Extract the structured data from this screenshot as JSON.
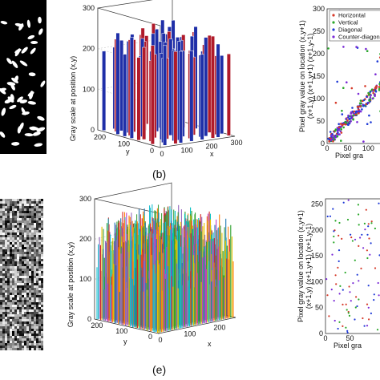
{
  "captions": {
    "top": "(b)",
    "bottom": "(e)"
  },
  "colors": {
    "bar_red": "#b01a2a",
    "bar_blue": "#1f2fa8",
    "bar_white": "#ffffff",
    "horizontal": "#d63a2a",
    "vertical": "#2aa82a",
    "diagonal": "#1f3ad6",
    "counter_diagonal": "#7a2ad6"
  },
  "chart_data": [
    {
      "type": "image",
      "panel": "binary-image",
      "note_text": ""
    },
    {
      "type": "bar3d",
      "panel": "3d-histogram-original",
      "zlabel": "Gray scale at position (x,y)",
      "xlabel": "x",
      "ylabel": "y",
      "zticks": [
        "0",
        "100",
        "200",
        "300"
      ],
      "xticks": [
        "0",
        "100",
        "200",
        "300"
      ],
      "yticks": [
        "0",
        "100",
        "200"
      ],
      "zlim": [
        0,
        300
      ],
      "bar_heights": [
        255,
        0,
        255,
        255,
        0,
        255,
        0,
        255,
        255,
        0,
        255,
        255,
        0,
        255,
        0,
        255,
        255,
        0,
        255,
        0
      ]
    },
    {
      "type": "scatter",
      "panel": "correlation-original",
      "ylabel_lines": [
        "Pixel gray value on location (x,y+1)",
        "(x+1,y) (x+1,y+1) (x+1,y-1)"
      ],
      "xlabel": "Pixel gra",
      "yticks": [
        "0",
        "50",
        "100",
        "150",
        "200",
        "250",
        "300"
      ],
      "xticks": [
        "0",
        "50",
        "100"
      ],
      "xlim": [
        0,
        300
      ],
      "ylim": [
        0,
        300
      ],
      "legend": [
        "Horizontal",
        "Vertical",
        "Diagonal",
        "Counter-diagon"
      ],
      "pattern": "strong diagonal correlation with scattered outliers"
    },
    {
      "type": "image",
      "panel": "encrypted-image"
    },
    {
      "type": "bar3d",
      "panel": "3d-histogram-encrypted",
      "zlabel": "Gray scale at position (x,y)",
      "xlabel": "x",
      "ylabel": "y",
      "zticks": [
        "0",
        "100",
        "200",
        "300"
      ],
      "xticks": [
        "0",
        "100",
        "200"
      ],
      "yticks": [
        "0",
        "100",
        "200"
      ],
      "zlim": [
        0,
        300
      ]
    },
    {
      "type": "scatter",
      "panel": "correlation-encrypted",
      "ylabel_lines": [
        "Pixel gray value on location (x,y+1)",
        "(x+1,y) (x+1,y+1) (x+1,y-1)"
      ],
      "xlabel": "Pixel gra",
      "yticks": [
        "0",
        "50",
        "100",
        "150",
        "200",
        "250"
      ],
      "xticks": [
        "0",
        "50"
      ],
      "xlim": [
        0,
        260
      ],
      "ylim": [
        0,
        260
      ],
      "pattern": "uniformly scattered points"
    }
  ]
}
